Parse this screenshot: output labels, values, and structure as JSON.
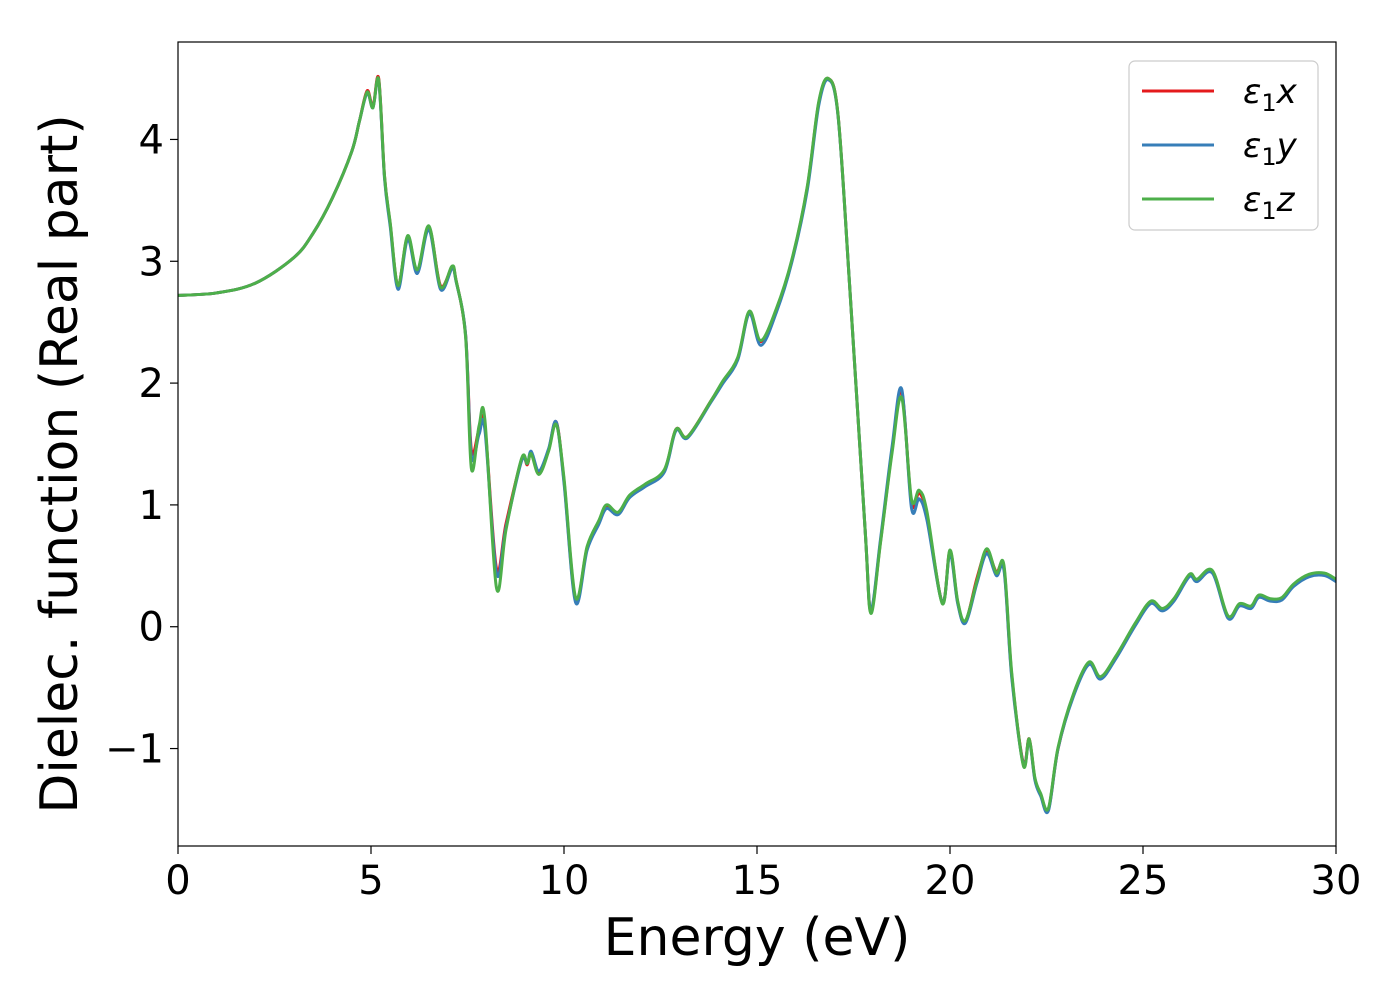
{
  "chart_data": {
    "type": "line",
    "xlabel": "Energy (eV)",
    "ylabel": "Dielec. function (Real part)",
    "xlim": [
      0,
      30
    ],
    "ylim": [
      -1.8,
      4.8
    ],
    "xticks": [
      0,
      5,
      10,
      15,
      20,
      25,
      30
    ],
    "xtick_labels": [
      "0",
      "5",
      "10",
      "15",
      "20",
      "25",
      "30"
    ],
    "yticks": [
      -1,
      0,
      1,
      2,
      3,
      4
    ],
    "ytick_labels": [
      "−1",
      "0",
      "1",
      "2",
      "3",
      "4"
    ],
    "grid": false,
    "legend_position": "top-right",
    "series": [
      {
        "name": "ε₁x",
        "legend_label": {
          "base": "ε",
          "sub": "1",
          "var": "x"
        },
        "color": "#e41a1c",
        "x": [
          0,
          1,
          2,
          3,
          3.5,
          4,
          4.5,
          4.7,
          4.9,
          5.05,
          5.2,
          5.35,
          5.5,
          5.7,
          5.95,
          6.2,
          6.5,
          6.8,
          7.1,
          7.2,
          7.45,
          7.6,
          7.8,
          7.95,
          8.25,
          8.5,
          8.9,
          9.05,
          9.15,
          9.35,
          9.6,
          9.8,
          10.0,
          10.3,
          10.6,
          10.9,
          11.1,
          11.4,
          11.7,
          12.1,
          12.6,
          12.9,
          13.2,
          13.8,
          14.1,
          14.5,
          14.8,
          15.1,
          15.5,
          15.9,
          16.3,
          16.6,
          16.85,
          17.1,
          17.4,
          17.8,
          17.95,
          18.2,
          18.5,
          18.75,
          19.0,
          19.2,
          19.4,
          19.8,
          20.0,
          20.2,
          20.4,
          20.7,
          20.95,
          21.2,
          21.4,
          21.6,
          21.9,
          22.05,
          22.2,
          22.35,
          22.55,
          22.8,
          23.2,
          23.6,
          23.9,
          24.3,
          24.8,
          25.2,
          25.5,
          25.8,
          26.2,
          26.4,
          26.8,
          27.2,
          27.5,
          27.8,
          28.0,
          28.3,
          28.6,
          28.9,
          29.3,
          29.7,
          30.0
        ],
        "values": [
          2.72,
          2.74,
          2.82,
          3.03,
          3.23,
          3.52,
          3.9,
          4.15,
          4.4,
          4.27,
          4.5,
          3.7,
          3.3,
          2.8,
          3.2,
          2.92,
          3.28,
          2.8,
          2.95,
          2.85,
          2.4,
          1.45,
          1.62,
          1.65,
          0.48,
          0.85,
          1.37,
          1.33,
          1.43,
          1.27,
          1.45,
          1.68,
          1.2,
          0.22,
          0.65,
          0.85,
          0.98,
          0.93,
          1.07,
          1.16,
          1.28,
          1.62,
          1.56,
          1.85,
          2.0,
          2.2,
          2.58,
          2.34,
          2.6,
          3.0,
          3.6,
          4.3,
          4.5,
          4.2,
          2.8,
          0.8,
          0.13,
          0.7,
          1.45,
          1.93,
          1.02,
          1.1,
          0.92,
          0.2,
          0.62,
          0.2,
          0.04,
          0.4,
          0.62,
          0.45,
          0.48,
          -0.4,
          -1.12,
          -0.92,
          -1.25,
          -1.38,
          -1.5,
          -1.0,
          -0.56,
          -0.3,
          -0.42,
          -0.25,
          0.02,
          0.2,
          0.14,
          0.22,
          0.42,
          0.38,
          0.45,
          0.08,
          0.18,
          0.16,
          0.25,
          0.22,
          0.23,
          0.34,
          0.42,
          0.43,
          0.38
        ]
      },
      {
        "name": "ε₁y",
        "legend_label": {
          "base": "ε",
          "sub": "1",
          "var": "y"
        },
        "color": "#377eb8",
        "x": [
          0,
          1,
          2,
          3,
          3.5,
          4,
          4.5,
          4.7,
          4.9,
          5.05,
          5.2,
          5.35,
          5.5,
          5.7,
          5.95,
          6.2,
          6.5,
          6.8,
          7.1,
          7.2,
          7.45,
          7.6,
          7.8,
          7.95,
          8.25,
          8.5,
          8.9,
          9.05,
          9.15,
          9.35,
          9.6,
          9.8,
          10.0,
          10.3,
          10.6,
          10.9,
          11.1,
          11.4,
          11.7,
          12.1,
          12.6,
          12.9,
          13.2,
          13.8,
          14.1,
          14.5,
          14.8,
          15.1,
          15.5,
          15.9,
          16.3,
          16.6,
          16.85,
          17.1,
          17.4,
          17.8,
          17.95,
          18.2,
          18.5,
          18.75,
          19.0,
          19.2,
          19.4,
          19.8,
          20.0,
          20.2,
          20.4,
          20.7,
          20.95,
          21.2,
          21.4,
          21.6,
          21.9,
          22.05,
          22.2,
          22.35,
          22.55,
          22.8,
          23.2,
          23.6,
          23.9,
          24.3,
          24.8,
          25.2,
          25.5,
          25.8,
          26.2,
          26.4,
          26.8,
          27.2,
          27.5,
          27.8,
          28.0,
          28.3,
          28.6,
          28.9,
          29.3,
          29.7,
          30.0
        ],
        "values": [
          2.72,
          2.74,
          2.82,
          3.03,
          3.23,
          3.52,
          3.9,
          4.15,
          4.38,
          4.26,
          4.48,
          3.68,
          3.28,
          2.77,
          3.18,
          2.9,
          3.26,
          2.77,
          2.94,
          2.84,
          2.4,
          1.4,
          1.58,
          1.62,
          0.44,
          0.82,
          1.36,
          1.34,
          1.44,
          1.28,
          1.46,
          1.68,
          1.18,
          0.2,
          0.63,
          0.84,
          0.97,
          0.92,
          1.06,
          1.15,
          1.27,
          1.61,
          1.55,
          1.84,
          1.99,
          2.19,
          2.57,
          2.31,
          2.58,
          2.99,
          3.58,
          4.28,
          4.49,
          4.19,
          2.8,
          0.8,
          0.14,
          0.72,
          1.48,
          1.95,
          0.98,
          1.05,
          0.88,
          0.2,
          0.6,
          0.19,
          0.03,
          0.36,
          0.6,
          0.42,
          0.46,
          -0.42,
          -1.13,
          -0.93,
          -1.26,
          -1.39,
          -1.51,
          -1.0,
          -0.57,
          -0.31,
          -0.43,
          -0.26,
          0.01,
          0.19,
          0.13,
          0.21,
          0.41,
          0.37,
          0.44,
          0.07,
          0.17,
          0.15,
          0.24,
          0.21,
          0.22,
          0.33,
          0.41,
          0.42,
          0.37
        ]
      },
      {
        "name": "ε₁z",
        "legend_label": {
          "base": "ε",
          "sub": "1",
          "var": "z"
        },
        "color": "#4daf4a",
        "x": [
          0,
          1,
          2,
          3,
          3.5,
          4,
          4.5,
          4.7,
          4.9,
          5.05,
          5.2,
          5.35,
          5.5,
          5.7,
          5.95,
          6.2,
          6.5,
          6.8,
          7.1,
          7.2,
          7.45,
          7.6,
          7.8,
          7.95,
          8.25,
          8.5,
          8.9,
          9.05,
          9.15,
          9.35,
          9.6,
          9.8,
          10.0,
          10.3,
          10.6,
          10.9,
          11.1,
          11.4,
          11.7,
          12.1,
          12.6,
          12.9,
          13.2,
          13.8,
          14.1,
          14.5,
          14.8,
          15.1,
          15.5,
          15.9,
          16.3,
          16.6,
          16.85,
          17.1,
          17.4,
          17.8,
          17.95,
          18.2,
          18.5,
          18.75,
          19.0,
          19.2,
          19.4,
          19.8,
          20.0,
          20.2,
          20.4,
          20.7,
          20.95,
          21.2,
          21.4,
          21.6,
          21.9,
          22.05,
          22.2,
          22.35,
          22.55,
          22.8,
          23.2,
          23.6,
          23.9,
          24.3,
          24.8,
          25.2,
          25.5,
          25.8,
          26.2,
          26.4,
          26.8,
          27.2,
          27.5,
          27.8,
          28.0,
          28.3,
          28.6,
          28.9,
          29.3,
          29.7,
          30.0
        ],
        "values": [
          2.72,
          2.74,
          2.82,
          3.03,
          3.23,
          3.52,
          3.9,
          4.15,
          4.39,
          4.26,
          4.49,
          3.7,
          3.31,
          2.8,
          3.21,
          2.93,
          3.29,
          2.79,
          2.96,
          2.85,
          2.38,
          1.3,
          1.65,
          1.7,
          0.32,
          0.8,
          1.38,
          1.34,
          1.42,
          1.25,
          1.44,
          1.66,
          1.22,
          0.24,
          0.66,
          0.87,
          1.0,
          0.94,
          1.08,
          1.17,
          1.29,
          1.62,
          1.56,
          1.85,
          2.01,
          2.21,
          2.59,
          2.35,
          2.61,
          3.01,
          3.61,
          4.31,
          4.5,
          4.2,
          2.8,
          0.8,
          0.11,
          0.69,
          1.43,
          1.88,
          1.05,
          1.12,
          0.95,
          0.19,
          0.63,
          0.21,
          0.05,
          0.38,
          0.64,
          0.44,
          0.5,
          -0.38,
          -1.14,
          -0.92,
          -1.24,
          -1.37,
          -1.49,
          -0.99,
          -0.55,
          -0.29,
          -0.41,
          -0.24,
          0.03,
          0.21,
          0.15,
          0.23,
          0.43,
          0.39,
          0.46,
          0.09,
          0.19,
          0.17,
          0.26,
          0.23,
          0.24,
          0.35,
          0.43,
          0.44,
          0.39
        ]
      }
    ]
  }
}
